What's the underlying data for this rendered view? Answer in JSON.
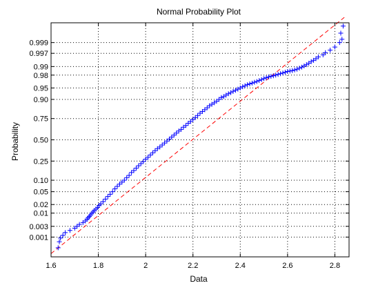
{
  "chart_data": {
    "type": "scatter",
    "title": "Normal Probability Plot",
    "xlabel": "Data",
    "ylabel": "Probability",
    "xlim": [
      1.6,
      2.86
    ],
    "ylim_probability": [
      0.0001,
      0.9999
    ],
    "y_scale": "normal-probability",
    "grid": true,
    "x_ticks": [
      1.6,
      1.8,
      2,
      2.2,
      2.4,
      2.6,
      2.8
    ],
    "x_tick_labels": [
      "1.6",
      "1.8",
      "2",
      "2.2",
      "2.4",
      "2.6",
      "2.8"
    ],
    "y_ticks": [
      0.001,
      0.003,
      0.01,
      0.02,
      0.05,
      0.1,
      0.25,
      0.5,
      0.75,
      0.9,
      0.95,
      0.98,
      0.99,
      0.997,
      0.999
    ],
    "y_tick_labels": [
      "0.001",
      "0.003",
      "0.01",
      "0.02",
      "0.05",
      "0.10",
      "0.25",
      "0.50",
      "0.75",
      "0.90",
      "0.95",
      "0.98",
      "0.99",
      "0.997",
      "0.999"
    ],
    "points": [
      [
        1.63,
        0.0003
      ],
      [
        1.635,
        0.0006
      ],
      [
        1.64,
        0.0009
      ],
      [
        1.65,
        0.0012
      ],
      [
        1.66,
        0.0016
      ],
      [
        1.68,
        0.002
      ],
      [
        1.7,
        0.0025
      ],
      [
        1.71,
        0.003
      ],
      [
        1.72,
        0.0036
      ],
      [
        1.735,
        0.0043
      ],
      [
        1.745,
        0.005
      ],
      [
        1.752,
        0.0058
      ],
      [
        1.757,
        0.0066
      ],
      [
        1.762,
        0.0075
      ],
      [
        1.767,
        0.0085
      ],
      [
        1.772,
        0.0098
      ],
      [
        1.778,
        0.011
      ],
      [
        1.783,
        0.0125
      ],
      [
        1.79,
        0.014
      ],
      [
        1.797,
        0.016
      ],
      [
        1.803,
        0.0185
      ],
      [
        1.81,
        0.021
      ],
      [
        1.82,
        0.025
      ],
      [
        1.83,
        0.03
      ],
      [
        1.84,
        0.036
      ],
      [
        1.85,
        0.042
      ],
      [
        1.86,
        0.05
      ],
      [
        1.87,
        0.06
      ],
      [
        1.88,
        0.07
      ],
      [
        1.89,
        0.08
      ],
      [
        1.9,
        0.09
      ],
      [
        1.91,
        0.1
      ],
      [
        1.92,
        0.115
      ],
      [
        1.93,
        0.13
      ],
      [
        1.94,
        0.15
      ],
      [
        1.95,
        0.165
      ],
      [
        1.96,
        0.185
      ],
      [
        1.97,
        0.205
      ],
      [
        1.98,
        0.225
      ],
      [
        1.99,
        0.245
      ],
      [
        2.0,
        0.27
      ],
      [
        2.01,
        0.29
      ],
      [
        2.02,
        0.315
      ],
      [
        2.03,
        0.34
      ],
      [
        2.04,
        0.365
      ],
      [
        2.05,
        0.39
      ],
      [
        2.06,
        0.41
      ],
      [
        2.07,
        0.435
      ],
      [
        2.08,
        0.46
      ],
      [
        2.09,
        0.485
      ],
      [
        2.1,
        0.51
      ],
      [
        2.11,
        0.535
      ],
      [
        2.12,
        0.56
      ],
      [
        2.13,
        0.585
      ],
      [
        2.14,
        0.61
      ],
      [
        2.15,
        0.63
      ],
      [
        2.16,
        0.655
      ],
      [
        2.17,
        0.675
      ],
      [
        2.18,
        0.7
      ],
      [
        2.19,
        0.72
      ],
      [
        2.2,
        0.74
      ],
      [
        2.21,
        0.76
      ],
      [
        2.22,
        0.78
      ],
      [
        2.23,
        0.8
      ],
      [
        2.24,
        0.815
      ],
      [
        2.25,
        0.83
      ],
      [
        2.26,
        0.845
      ],
      [
        2.27,
        0.86
      ],
      [
        2.28,
        0.87
      ],
      [
        2.29,
        0.88
      ],
      [
        2.3,
        0.89
      ],
      [
        2.31,
        0.9
      ],
      [
        2.32,
        0.91
      ],
      [
        2.33,
        0.915
      ],
      [
        2.34,
        0.922
      ],
      [
        2.35,
        0.928
      ],
      [
        2.36,
        0.933
      ],
      [
        2.37,
        0.938
      ],
      [
        2.38,
        0.942
      ],
      [
        2.39,
        0.946
      ],
      [
        2.4,
        0.95
      ],
      [
        2.41,
        0.954
      ],
      [
        2.42,
        0.957
      ],
      [
        2.43,
        0.96
      ],
      [
        2.44,
        0.962
      ],
      [
        2.45,
        0.964
      ],
      [
        2.46,
        0.966
      ],
      [
        2.47,
        0.968
      ],
      [
        2.48,
        0.97
      ],
      [
        2.49,
        0.972
      ],
      [
        2.5,
        0.974
      ],
      [
        2.51,
        0.9755
      ],
      [
        2.52,
        0.977
      ],
      [
        2.53,
        0.978
      ],
      [
        2.54,
        0.979
      ],
      [
        2.55,
        0.98
      ],
      [
        2.56,
        0.981
      ],
      [
        2.57,
        0.982
      ],
      [
        2.58,
        0.983
      ],
      [
        2.59,
        0.984
      ],
      [
        2.6,
        0.985
      ],
      [
        2.61,
        0.9855
      ],
      [
        2.62,
        0.986
      ],
      [
        2.63,
        0.9868
      ],
      [
        2.64,
        0.9875
      ],
      [
        2.65,
        0.9885
      ],
      [
        2.66,
        0.9895
      ],
      [
        2.67,
        0.9905
      ],
      [
        2.68,
        0.9915
      ],
      [
        2.69,
        0.9925
      ],
      [
        2.7,
        0.9935
      ],
      [
        2.71,
        0.9942
      ],
      [
        2.72,
        0.995
      ],
      [
        2.73,
        0.9958
      ],
      [
        2.75,
        0.9965
      ],
      [
        2.76,
        0.9972
      ],
      [
        2.78,
        0.9978
      ],
      [
        2.8,
        0.9984
      ],
      [
        2.82,
        0.999
      ],
      [
        2.83,
        0.9993
      ],
      [
        2.825,
        0.99965
      ],
      [
        2.835,
        0.99985
      ]
    ],
    "reference_line": [
      [
        1.6,
        0.00015
      ],
      [
        2.84,
        0.99995
      ]
    ],
    "marker_color": "#0000ff",
    "reference_line_color": "#ff0000"
  }
}
